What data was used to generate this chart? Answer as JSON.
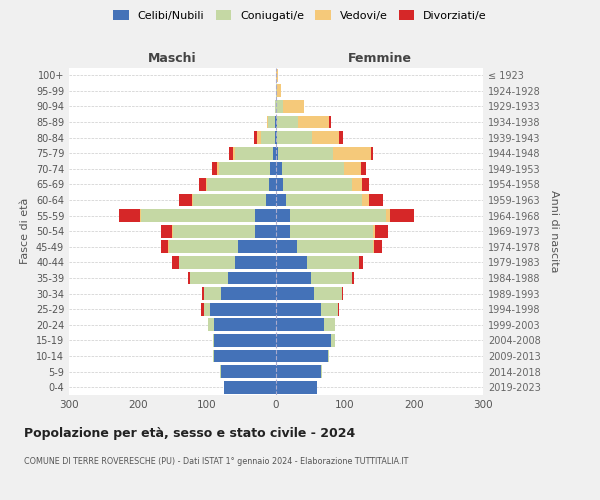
{
  "age_groups": [
    "0-4",
    "5-9",
    "10-14",
    "15-19",
    "20-24",
    "25-29",
    "30-34",
    "35-39",
    "40-44",
    "45-49",
    "50-54",
    "55-59",
    "60-64",
    "65-69",
    "70-74",
    "75-79",
    "80-84",
    "85-89",
    "90-94",
    "95-99",
    "100+"
  ],
  "birth_years": [
    "2019-2023",
    "2014-2018",
    "2009-2013",
    "2004-2008",
    "1999-2003",
    "1994-1998",
    "1989-1993",
    "1984-1988",
    "1979-1983",
    "1974-1978",
    "1969-1973",
    "1964-1968",
    "1959-1963",
    "1954-1958",
    "1949-1953",
    "1944-1948",
    "1939-1943",
    "1934-1938",
    "1929-1933",
    "1924-1928",
    "≤ 1923"
  ],
  "colors": {
    "celibi": "#4472b8",
    "coniugati": "#c5d8a4",
    "vedovi": "#f5c97a",
    "divorziati": "#d62728"
  },
  "maschi": {
    "celibi": [
      75,
      80,
      90,
      90,
      90,
      95,
      80,
      70,
      60,
      55,
      30,
      30,
      15,
      10,
      8,
      5,
      2,
      1,
      0,
      0,
      0
    ],
    "coniugati": [
      0,
      1,
      2,
      2,
      8,
      10,
      25,
      55,
      80,
      100,
      120,
      165,
      105,
      90,
      75,
      55,
      20,
      10,
      2,
      0,
      0
    ],
    "vedovi": [
      0,
      0,
      0,
      0,
      0,
      0,
      0,
      0,
      1,
      1,
      1,
      2,
      2,
      2,
      2,
      3,
      5,
      2,
      0,
      0,
      0
    ],
    "divorziati": [
      0,
      0,
      0,
      0,
      1,
      3,
      2,
      3,
      10,
      10,
      15,
      30,
      18,
      10,
      8,
      5,
      5,
      0,
      0,
      0,
      0
    ]
  },
  "femmine": {
    "celibi": [
      60,
      65,
      75,
      80,
      70,
      65,
      55,
      50,
      45,
      30,
      20,
      20,
      15,
      10,
      8,
      3,
      2,
      2,
      0,
      0,
      0
    ],
    "coniugati": [
      0,
      1,
      2,
      5,
      15,
      25,
      40,
      60,
      75,
      110,
      120,
      140,
      110,
      100,
      90,
      80,
      50,
      30,
      10,
      2,
      0
    ],
    "vedovi": [
      0,
      0,
      0,
      0,
      0,
      0,
      0,
      0,
      1,
      2,
      3,
      5,
      10,
      15,
      25,
      55,
      40,
      45,
      30,
      5,
      3
    ],
    "divorziati": [
      0,
      0,
      0,
      0,
      1,
      2,
      2,
      3,
      5,
      12,
      20,
      35,
      20,
      10,
      8,
      3,
      5,
      2,
      0,
      0,
      0
    ]
  },
  "title": "Popolazione per età, sesso e stato civile - 2024",
  "subtitle": "COMUNE DI TERRE ROVERESCHE (PU) - Dati ISTAT 1° gennaio 2024 - Elaborazione TUTTITALIA.IT",
  "xlabel_maschi": "Maschi",
  "xlabel_femmine": "Femmine",
  "ylabel_left": "Fasce di età",
  "ylabel_right": "Anni di nascita",
  "xlim": 300,
  "background_color": "#f0f0f0",
  "plot_bg": "#ffffff"
}
